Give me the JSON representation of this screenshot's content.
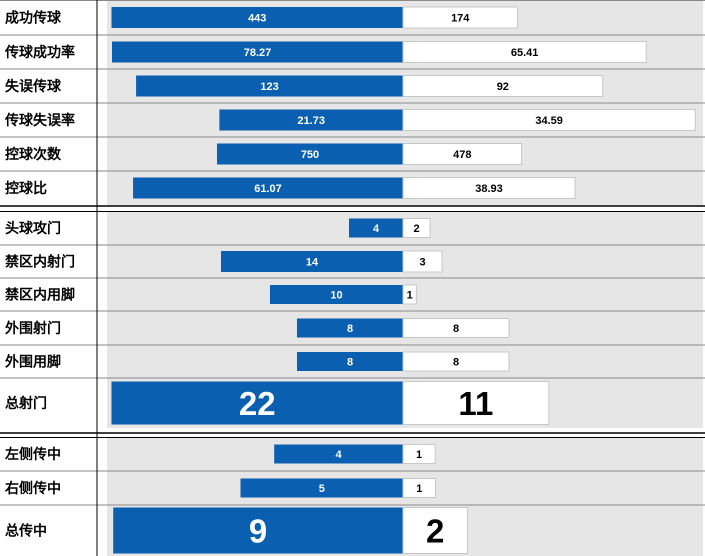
{
  "colors": {
    "home": "#0a5fb0",
    "away": "#ffffff",
    "panel": "#e6e6e6"
  },
  "chart_data": [
    {
      "type": "bar",
      "orientation": "diverging-horizontal",
      "categories": [
        "成功传球",
        "传球成功率",
        "失误传球",
        "传球失误率",
        "控球次数",
        "控球比"
      ],
      "series": [
        {
          "values": [
            443,
            78.27,
            123,
            21.73,
            750,
            61.07
          ]
        },
        {
          "values": [
            174,
            65.41,
            92,
            34.59,
            478,
            38.93
          ]
        }
      ],
      "value_labels": [
        [
          "443",
          "174"
        ],
        [
          "78.27",
          "65.41"
        ],
        [
          "123",
          "92"
        ],
        [
          "21.73",
          "34.59"
        ],
        [
          "750",
          "478"
        ],
        [
          "61.07",
          "38.93"
        ]
      ]
    },
    {
      "type": "bar",
      "orientation": "diverging-horizontal",
      "categories": [
        "头球攻门",
        "禁区内射门",
        "禁区内用脚",
        "外围射门",
        "外围用脚",
        "总射门"
      ],
      "series": [
        {
          "values": [
            4,
            14,
            10,
            8,
            8,
            22
          ]
        },
        {
          "values": [
            2,
            3,
            1,
            8,
            8,
            11
          ]
        }
      ],
      "value_labels": [
        [
          "4",
          "2"
        ],
        [
          "14",
          "3"
        ],
        [
          "10",
          "1"
        ],
        [
          "8",
          "8"
        ],
        [
          "8",
          "8"
        ],
        [
          "22",
          "11"
        ]
      ]
    },
    {
      "type": "bar",
      "orientation": "diverging-horizontal",
      "categories": [
        "左侧传中",
        "右侧传中",
        "总传中"
      ],
      "series": [
        {
          "values": [
            4,
            5,
            9
          ]
        },
        {
          "values": [
            1,
            1,
            2
          ]
        }
      ],
      "value_labels": [
        [
          "4",
          "1"
        ],
        [
          "5",
          "1"
        ],
        [
          "9",
          "2"
        ]
      ]
    }
  ]
}
